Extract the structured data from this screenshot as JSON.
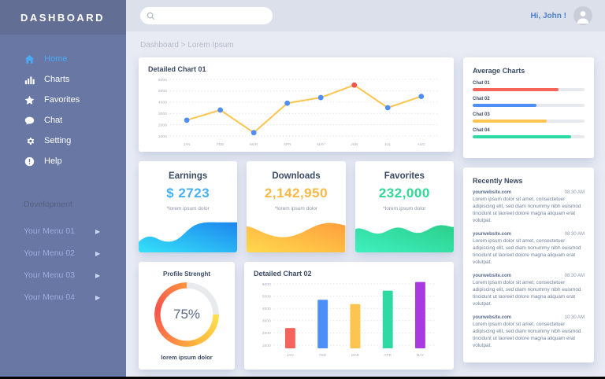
{
  "sidebar": {
    "title": "DASHBOARD",
    "items": [
      {
        "icon": "home-icon",
        "label": "Home",
        "active": true
      },
      {
        "icon": "charts-icon",
        "label": "Charts",
        "active": false
      },
      {
        "icon": "star-icon",
        "label": "Favorites",
        "active": false
      },
      {
        "icon": "chat-icon",
        "label": "Chat",
        "active": false
      },
      {
        "icon": "gear-icon",
        "label": "Setting",
        "active": false
      },
      {
        "icon": "help-icon",
        "label": "Help",
        "active": false
      }
    ],
    "section_label": "Development",
    "dev_items": [
      {
        "label": "Your Menu 01"
      },
      {
        "label": "Your Menu 02"
      },
      {
        "label": "Your Menu 03"
      },
      {
        "label": "Your Menu 04"
      }
    ]
  },
  "topbar": {
    "search_placeholder": "",
    "greeting": "Hi, John !"
  },
  "breadcrumb": "Dashboard > Lorem Ipsum",
  "cards": {
    "chart01_title": "Detailed Chart 01",
    "chart02_title": "Detailed Chart 02",
    "average": {
      "title": "Average Charts",
      "items": [
        {
          "label": "Chat 01",
          "percent": 77,
          "color": "#f4645c"
        },
        {
          "label": "Chat 02",
          "percent": 57,
          "color": "#4d8ef7"
        },
        {
          "label": "Chat 03",
          "percent": 66,
          "color": "#fdc44f"
        },
        {
          "label": "Chat 04",
          "percent": 88,
          "color": "#2ed9a3"
        }
      ]
    },
    "stats": [
      {
        "title": "Earnings",
        "value": "$ 2723",
        "note": "*lorem ipsum dolor",
        "color": "#45b1f4",
        "wave": [
          "#35e2f8",
          "#1d86ef"
        ]
      },
      {
        "title": "Downloads",
        "value": "2,142,950",
        "note": "*lorem ipsum dolor",
        "color": "#fcb844",
        "wave": [
          "#ffd94d",
          "#ff9f3c"
        ]
      },
      {
        "title": "Favorites",
        "value": "232,000",
        "note": "*lorem ipsum dolor",
        "color": "#2fd895",
        "wave": [
          "#3ff0c0",
          "#2bcf8a"
        ]
      }
    ],
    "profile": {
      "title": "Profile Strenght",
      "percent": 75,
      "percent_label": "75%",
      "caption": "lorem ipsum dolor"
    },
    "news": {
      "title": "Recently News",
      "items": [
        {
          "domain": "yourwebsite.com",
          "time": "08:30 AM",
          "text": "Lorem ipsum dolor sit amet, consectetuer adipiscing elit, sed diam nonummy nibh euismod tincidunt ut laoreet dolore magna aliquam erat volutpat."
        },
        {
          "domain": "yourwebsite.com",
          "time": "08:30 AM",
          "text": "Lorem ipsum dolor sit amet, consectetuer adipiscing elit, sed diam nonummy nibh euismod tincidunt ut laoreet dolore magna aliquam erat volutpat."
        },
        {
          "domain": "yourwebsite.com",
          "time": "08:30 AM",
          "text": "Lorem ipsum dolor sit amet, consectetuer adipiscing elit, sed diam nonummy nibh euismod tincidunt ut laoreet dolore magna aliquam erat volutpat."
        },
        {
          "domain": "yourwebsite.com",
          "time": "10:30 AM",
          "text": "Lorem ipsum dolor sit amet, consectetuer adipiscing elit, sed diam nonummy nibh euismod tincidunt ut laoreet dolore magna aliquam erat volutpat."
        }
      ]
    }
  },
  "chart_data": [
    {
      "type": "line",
      "title": "Detailed Chart 01",
      "x": [
        "JAN",
        "FEB",
        "MAR",
        "APR",
        "MAY",
        "JUN",
        "JUL",
        "AUG"
      ],
      "series": [
        {
          "name": "Detailed Chart 01",
          "values": [
            2400,
            3300,
            1300,
            3900,
            4400,
            5500,
            3500,
            4500
          ]
        }
      ],
      "ylim": [
        1000,
        6000
      ],
      "yticks": [
        1000,
        2000,
        3000,
        4000,
        5000,
        6000
      ],
      "grid": "dotted",
      "line_color": "#fdc44f",
      "point_color": "#4d8ef7",
      "highlight_index": 5,
      "highlight_color": "#f0564c",
      "legend": "none"
    },
    {
      "type": "bar",
      "title": "Detailed Chart 02",
      "categories": [
        "JAN",
        "FEB",
        "MAR",
        "APR",
        "MAY"
      ],
      "values": [
        2400,
        4700,
        4350,
        5450,
        6150
      ],
      "colors": [
        "#f4645c",
        "#4d8ef7",
        "#fdc44f",
        "#2ed9a3",
        "#a93ae0"
      ],
      "ylim": [
        1000,
        6000
      ],
      "yticks": [
        1000,
        2000,
        3000,
        4000,
        5000,
        6000
      ],
      "grid": "dotted",
      "legend": "none"
    }
  ]
}
